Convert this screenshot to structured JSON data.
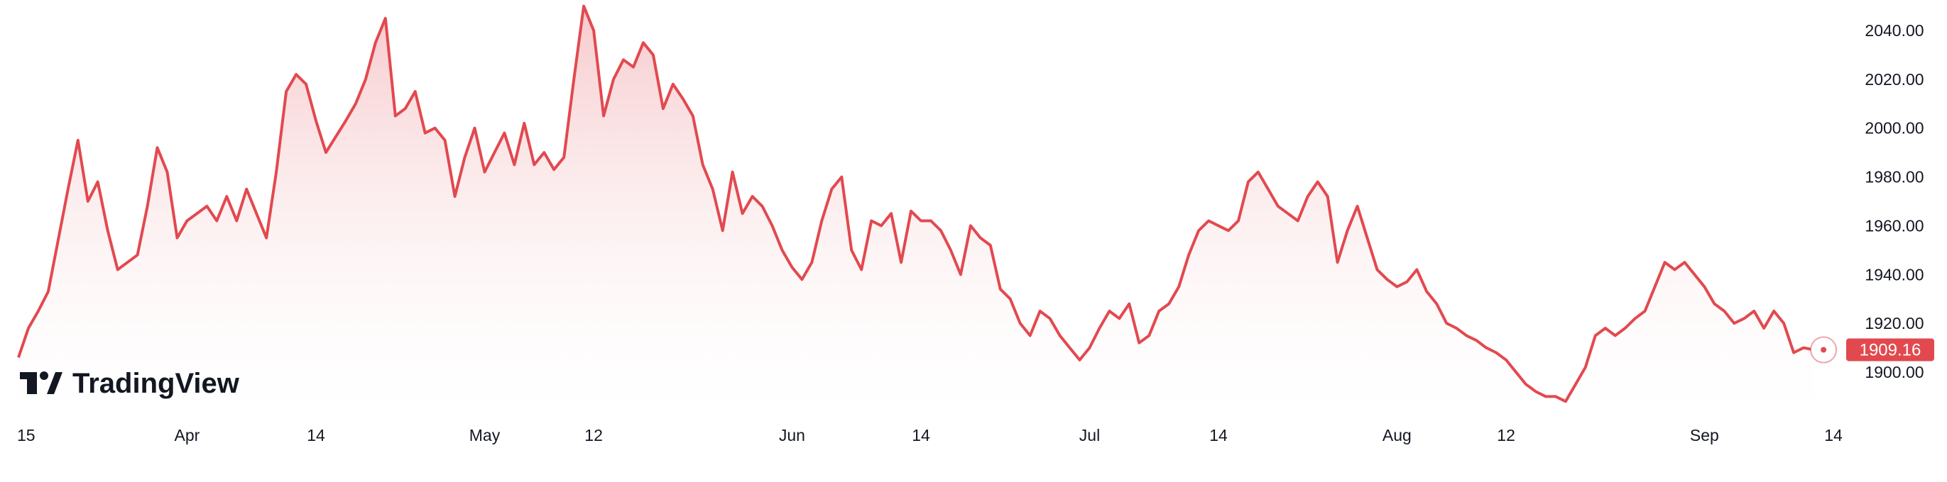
{
  "chart_data": {
    "type": "area",
    "title": "",
    "xlabel": "",
    "ylabel": "",
    "ylim": [
      1884,
      2052
    ],
    "y_ticks": [
      "2040.00",
      "2020.00",
      "2000.00",
      "1980.00",
      "1960.00",
      "1940.00",
      "1920.00",
      "1900.00"
    ],
    "x_ticks": [
      "15",
      "Apr",
      "14",
      "May",
      "12",
      "Jun",
      "14",
      "Jul",
      "14",
      "Aug",
      "12",
      "Sep",
      "14"
    ],
    "grid": false,
    "series": [
      {
        "points": [
          [
            "Mar 15",
            1906
          ],
          [
            "Mar 16",
            1918
          ],
          [
            "Mar 17",
            1925
          ],
          [
            "Mar 18",
            1933
          ],
          [
            "Mar 20",
            1975
          ],
          [
            "Mar 21",
            1995
          ],
          [
            "Mar 22",
            1970
          ],
          [
            "Mar 23",
            1978
          ],
          [
            "Mar 24",
            1958
          ],
          [
            "Mar 25",
            1942
          ],
          [
            "Mar 27",
            1948
          ],
          [
            "Mar 28",
            1968
          ],
          [
            "Mar 29",
            1992
          ],
          [
            "Mar 30",
            1982
          ],
          [
            "Mar 31",
            1955
          ],
          [
            "Apr 1",
            1962
          ],
          [
            "Apr 3",
            1968
          ],
          [
            "Apr 4",
            1962
          ],
          [
            "Apr 5",
            1972
          ],
          [
            "Apr 6",
            1962
          ],
          [
            "Apr 7",
            1975
          ],
          [
            "Apr 9",
            1955
          ],
          [
            "Apr 10",
            1982
          ],
          [
            "Apr 11",
            2015
          ],
          [
            "Apr 12",
            2022
          ],
          [
            "Apr 13",
            2018
          ],
          [
            "Apr 14",
            2003
          ],
          [
            "Apr 15",
            1990
          ],
          [
            "Apr 17",
            2003
          ],
          [
            "Apr 18",
            2010
          ],
          [
            "Apr 19",
            2020
          ],
          [
            "Apr 20",
            2035
          ],
          [
            "Apr 21",
            2045
          ],
          [
            "Apr 22",
            2005
          ],
          [
            "Apr 23",
            2008
          ],
          [
            "Apr 24",
            2015
          ],
          [
            "Apr 25",
            1998
          ],
          [
            "Apr 26",
            2000
          ],
          [
            "Apr 27",
            1995
          ],
          [
            "Apr 28",
            1972
          ],
          [
            "Apr 29",
            1988
          ],
          [
            "Apr 30",
            2000
          ],
          [
            "May 1",
            1982
          ],
          [
            "May 2",
            1990
          ],
          [
            "May 3",
            1998
          ],
          [
            "May 4",
            1985
          ],
          [
            "May 5",
            2002
          ],
          [
            "May 6",
            1985
          ],
          [
            "May 7",
            1990
          ],
          [
            "May 8",
            1983
          ],
          [
            "May 9",
            1988
          ],
          [
            "May 10",
            2020
          ],
          [
            "May 11",
            2050
          ],
          [
            "May 12",
            2040
          ],
          [
            "May 13",
            2005
          ],
          [
            "May 14",
            2020
          ],
          [
            "May 15",
            2028
          ],
          [
            "May 16",
            2025
          ],
          [
            "May 17",
            2035
          ],
          [
            "May 18",
            2030
          ],
          [
            "May 19",
            2008
          ],
          [
            "May 20",
            2018
          ],
          [
            "May 21",
            2012
          ],
          [
            "May 22",
            2005
          ],
          [
            "May 23",
            1985
          ],
          [
            "May 24",
            1975
          ],
          [
            "May 25",
            1958
          ],
          [
            "May 26",
            1982
          ],
          [
            "May 27",
            1965
          ],
          [
            "May 28",
            1972
          ],
          [
            "May 29",
            1968
          ],
          [
            "May 30",
            1960
          ],
          [
            "May 31",
            1950
          ],
          [
            "Jun 1",
            1943
          ],
          [
            "Jun 2",
            1938
          ],
          [
            "Jun 3",
            1945
          ],
          [
            "Jun 4",
            1962
          ],
          [
            "Jun 5",
            1975
          ],
          [
            "Jun 6",
            1980
          ],
          [
            "Jun 7",
            1950
          ],
          [
            "Jun 8",
            1942
          ],
          [
            "Jun 9",
            1962
          ],
          [
            "Jun 10",
            1960
          ],
          [
            "Jun 11",
            1965
          ],
          [
            "Jun 12",
            1945
          ],
          [
            "Jun 13",
            1966
          ],
          [
            "Jun 14",
            1962
          ],
          [
            "Jun 15",
            1962
          ],
          [
            "Jun 16",
            1958
          ],
          [
            "Jun 17",
            1950
          ],
          [
            "Jun 18",
            1940
          ],
          [
            "Jun 19",
            1960
          ],
          [
            "Jun 20",
            1955
          ],
          [
            "Jun 21",
            1952
          ],
          [
            "Jun 22",
            1934
          ],
          [
            "Jun 23",
            1930
          ],
          [
            "Jun 24",
            1920
          ],
          [
            "Jun 25",
            1915
          ],
          [
            "Jun 26",
            1925
          ],
          [
            "Jun 27",
            1922
          ],
          [
            "Jun 28",
            1915
          ],
          [
            "Jun 29",
            1910
          ],
          [
            "Jun 30",
            1905
          ],
          [
            "Jul 1",
            1910
          ],
          [
            "Jul 2",
            1918
          ],
          [
            "Jul 3",
            1925
          ],
          [
            "Jul 4",
            1922
          ],
          [
            "Jul 5",
            1928
          ],
          [
            "Jul 6",
            1912
          ],
          [
            "Jul 7",
            1915
          ],
          [
            "Jul 8",
            1925
          ],
          [
            "Jul 9",
            1928
          ],
          [
            "Jul 10",
            1935
          ],
          [
            "Jul 11",
            1948
          ],
          [
            "Jul 12",
            1958
          ],
          [
            "Jul 13",
            1962
          ],
          [
            "Jul 14",
            1960
          ],
          [
            "Jul 15",
            1958
          ],
          [
            "Jul 16",
            1962
          ],
          [
            "Jul 17",
            1978
          ],
          [
            "Jul 18",
            1982
          ],
          [
            "Jul 19",
            1975
          ],
          [
            "Jul 20",
            1968
          ],
          [
            "Jul 21",
            1965
          ],
          [
            "Jul 22",
            1962
          ],
          [
            "Jul 23",
            1972
          ],
          [
            "Jul 24",
            1978
          ],
          [
            "Jul 25",
            1972
          ],
          [
            "Jul 26",
            1945
          ],
          [
            "Jul 27",
            1958
          ],
          [
            "Jul 28",
            1968
          ],
          [
            "Jul 29",
            1955
          ],
          [
            "Jul 30",
            1942
          ],
          [
            "Jul 31",
            1938
          ],
          [
            "Aug 1",
            1935
          ],
          [
            "Aug 2",
            1937
          ],
          [
            "Aug 3",
            1942
          ],
          [
            "Aug 4",
            1933
          ],
          [
            "Aug 5",
            1928
          ],
          [
            "Aug 6",
            1920
          ],
          [
            "Aug 7",
            1918
          ],
          [
            "Aug 8",
            1915
          ],
          [
            "Aug 9",
            1913
          ],
          [
            "Aug 10",
            1910
          ],
          [
            "Aug 11",
            1908
          ],
          [
            "Aug 12",
            1905
          ],
          [
            "Aug 13",
            1900
          ],
          [
            "Aug 14",
            1895
          ],
          [
            "Aug 15",
            1892
          ],
          [
            "Aug 16",
            1890
          ],
          [
            "Aug 17",
            1890
          ],
          [
            "Aug 18",
            1888
          ],
          [
            "Aug 19",
            1895
          ],
          [
            "Aug 20",
            1902
          ],
          [
            "Aug 21",
            1915
          ],
          [
            "Aug 22",
            1918
          ],
          [
            "Aug 23",
            1915
          ],
          [
            "Aug 24",
            1918
          ],
          [
            "Aug 25",
            1922
          ],
          [
            "Aug 26",
            1925
          ],
          [
            "Aug 27",
            1935
          ],
          [
            "Aug 28",
            1945
          ],
          [
            "Aug 29",
            1942
          ],
          [
            "Aug 30",
            1945
          ],
          [
            "Aug 31",
            1940
          ],
          [
            "Sep 1",
            1935
          ],
          [
            "Sep 2",
            1928
          ],
          [
            "Sep 3",
            1925
          ],
          [
            "Sep 4",
            1920
          ],
          [
            "Sep 5",
            1922
          ],
          [
            "Sep 6",
            1925
          ],
          [
            "Sep 7",
            1918
          ],
          [
            "Sep 8",
            1925
          ],
          [
            "Sep 9",
            1920
          ],
          [
            "Sep 10",
            1908
          ],
          [
            "Sep 11",
            1910
          ],
          [
            "Sep 12",
            1909.16
          ]
        ]
      }
    ],
    "last_price": "1909.16",
    "colors": {
      "line": "#e2494f",
      "fill_top": "#f6c7ca",
      "fill_bottom": "#ffffff",
      "badge": "#e2494f"
    }
  },
  "watermark": {
    "text": "TradingView"
  }
}
